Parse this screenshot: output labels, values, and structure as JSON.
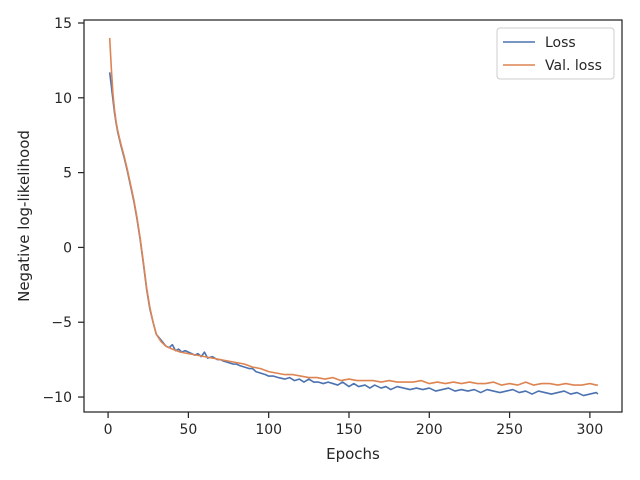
{
  "chart_data": {
    "type": "line",
    "title": "",
    "xlabel": "Epochs",
    "ylabel": "Negative log-likelihood",
    "xlim": [
      -15,
      320
    ],
    "ylim": [
      -11,
      15.2
    ],
    "xticks": [
      0,
      50,
      100,
      150,
      200,
      250,
      300
    ],
    "yticks": [
      -10,
      -5,
      0,
      5,
      10,
      15
    ],
    "xtick_labels": [
      "0",
      "50",
      "100",
      "150",
      "200",
      "250",
      "300"
    ],
    "ytick_labels": [
      "−10",
      "−5",
      "0",
      "5",
      "10",
      "15"
    ],
    "grid": false,
    "legend_position": "top-right",
    "series": [
      {
        "name": "Loss",
        "color": "#4c72b0",
        "x": [
          1,
          2,
          3,
          4,
          5,
          6,
          8,
          10,
          12,
          14,
          16,
          18,
          20,
          22,
          24,
          26,
          28,
          30,
          33,
          36,
          38,
          40,
          42,
          44,
          46,
          48,
          50,
          52,
          54,
          56,
          58,
          60,
          62,
          65,
          68,
          70,
          72,
          75,
          78,
          80,
          82,
          85,
          88,
          90,
          92,
          95,
          98,
          100,
          103,
          106,
          110,
          113,
          116,
          119,
          122,
          125,
          128,
          131,
          134,
          137,
          140,
          143,
          146,
          150,
          153,
          156,
          160,
          163,
          166,
          170,
          173,
          176,
          180,
          184,
          188,
          192,
          196,
          200,
          204,
          208,
          212,
          216,
          220,
          224,
          228,
          232,
          236,
          240,
          244,
          248,
          252,
          256,
          260,
          264,
          268,
          272,
          276,
          280,
          284,
          288,
          292,
          296,
          300,
          304,
          305
        ],
        "y": [
          11.7,
          10.8,
          9.9,
          9.0,
          8.3,
          7.7,
          6.8,
          6.0,
          5.1,
          4.1,
          3.1,
          1.9,
          0.5,
          -1.1,
          -2.8,
          -4.1,
          -5.0,
          -5.8,
          -6.2,
          -6.6,
          -6.7,
          -6.5,
          -6.9,
          -6.8,
          -7.0,
          -6.9,
          -7.0,
          -7.1,
          -7.2,
          -7.1,
          -7.3,
          -7.0,
          -7.4,
          -7.3,
          -7.5,
          -7.5,
          -7.6,
          -7.7,
          -7.8,
          -7.8,
          -7.9,
          -8.0,
          -8.1,
          -8.1,
          -8.3,
          -8.4,
          -8.5,
          -8.6,
          -8.6,
          -8.7,
          -8.8,
          -8.7,
          -8.9,
          -8.8,
          -9.0,
          -8.8,
          -9.0,
          -9.0,
          -9.1,
          -9.0,
          -9.1,
          -9.2,
          -9.0,
          -9.3,
          -9.1,
          -9.3,
          -9.2,
          -9.4,
          -9.2,
          -9.4,
          -9.3,
          -9.5,
          -9.3,
          -9.4,
          -9.5,
          -9.4,
          -9.5,
          -9.4,
          -9.6,
          -9.5,
          -9.4,
          -9.6,
          -9.5,
          -9.6,
          -9.5,
          -9.7,
          -9.5,
          -9.6,
          -9.7,
          -9.6,
          -9.5,
          -9.7,
          -9.6,
          -9.8,
          -9.6,
          -9.7,
          -9.8,
          -9.7,
          -9.6,
          -9.8,
          -9.7,
          -9.9,
          -9.8,
          -9.7,
          -9.8
        ]
      },
      {
        "name": "Val. loss",
        "color": "#dd8452",
        "x": [
          1,
          2,
          3,
          4,
          5,
          6,
          8,
          10,
          12,
          14,
          16,
          18,
          20,
          22,
          24,
          26,
          28,
          30,
          33,
          36,
          40,
          45,
          50,
          55,
          60,
          65,
          70,
          75,
          80,
          85,
          90,
          95,
          100,
          105,
          110,
          115,
          120,
          125,
          130,
          135,
          140,
          145,
          150,
          155,
          160,
          165,
          170,
          175,
          180,
          185,
          190,
          195,
          200,
          205,
          210,
          215,
          220,
          225,
          230,
          235,
          240,
          245,
          250,
          255,
          260,
          265,
          270,
          275,
          280,
          285,
          290,
          295,
          300,
          304,
          305
        ],
        "y": [
          14.0,
          12.0,
          10.3,
          9.2,
          8.4,
          7.8,
          6.9,
          6.1,
          5.2,
          4.2,
          3.2,
          2.0,
          0.6,
          -1.0,
          -2.7,
          -4.0,
          -5.0,
          -5.8,
          -6.3,
          -6.6,
          -6.8,
          -7.0,
          -7.1,
          -7.2,
          -7.3,
          -7.4,
          -7.5,
          -7.6,
          -7.7,
          -7.8,
          -8.0,
          -8.1,
          -8.3,
          -8.4,
          -8.5,
          -8.5,
          -8.6,
          -8.7,
          -8.7,
          -8.8,
          -8.7,
          -8.9,
          -8.8,
          -8.9,
          -8.9,
          -8.9,
          -9.0,
          -8.9,
          -9.0,
          -9.0,
          -9.0,
          -8.9,
          -9.1,
          -9.0,
          -9.1,
          -9.0,
          -9.1,
          -9.0,
          -9.1,
          -9.1,
          -9.0,
          -9.2,
          -9.1,
          -9.2,
          -9.0,
          -9.2,
          -9.1,
          -9.1,
          -9.2,
          -9.1,
          -9.2,
          -9.2,
          -9.1,
          -9.2,
          -9.2
        ]
      }
    ]
  }
}
